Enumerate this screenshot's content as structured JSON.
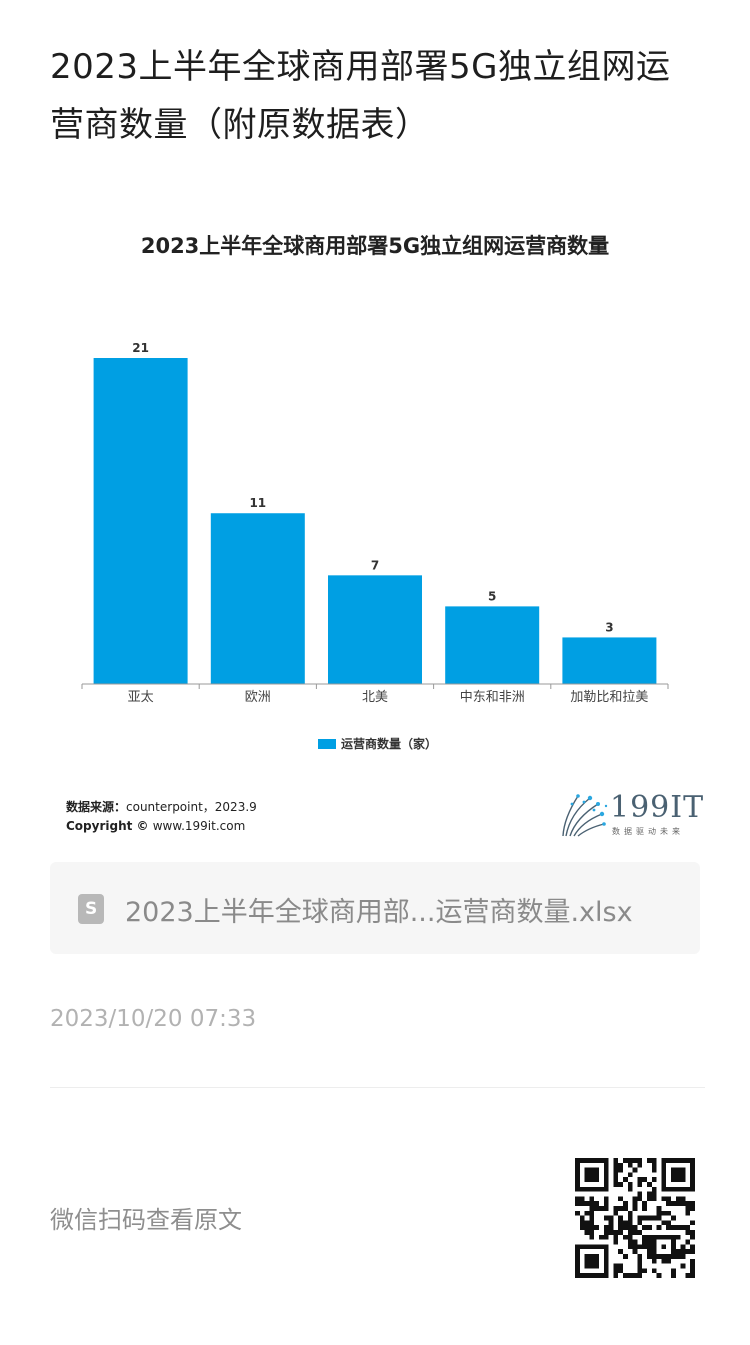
{
  "article": {
    "title": "2023上半年全球商用部署5G独立组网运营商数量（附原数据表）"
  },
  "chart_data": {
    "type": "bar",
    "title": "2023上半年全球商用部署5G独立组网运营商数量",
    "categories": [
      "亚太",
      "欧洲",
      "北美",
      "中东和非洲",
      "加勒比和拉美"
    ],
    "series": [
      {
        "name": "运营商数量（家）",
        "values": [
          21,
          11,
          7,
          5,
          3
        ],
        "color": "#009fe3"
      }
    ],
    "ylim": [
      0,
      21
    ],
    "grid": false,
    "legend": "bottom-center",
    "data_labels": true
  },
  "source": {
    "label": "数据来源：",
    "value": "counterpoint，2023.9",
    "copyright_label": "Copyright ©",
    "copyright_value": "www.199it.com"
  },
  "logo": {
    "text": "199IT",
    "subtitle": "数据驱动未来"
  },
  "attachment": {
    "icon": "spreadsheet-file-icon",
    "icon_letter": "S",
    "file_name": "2023上半年全球商用部...运营商数量.xlsx"
  },
  "post": {
    "time": "2023/10/20 07:33"
  },
  "footer": {
    "scan_text": "微信扫码查看原文",
    "qr_icon": "qr-code-icon"
  }
}
